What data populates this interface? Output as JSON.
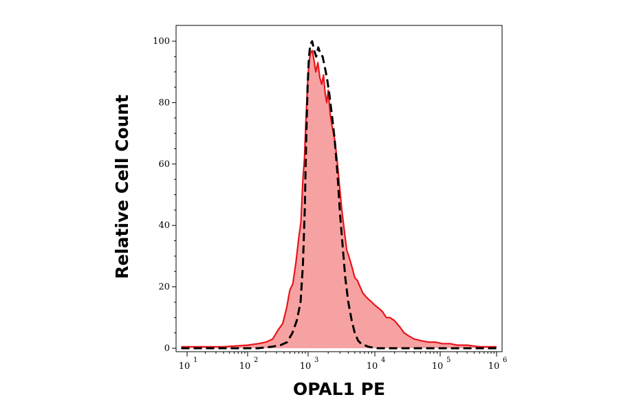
{
  "chart_data": {
    "type": "area",
    "xlabel": "OPAL1 PE",
    "ylabel": "Relative Cell Count",
    "x_scale": "log",
    "xlim": [
      10,
      1000000
    ],
    "ylim": [
      0,
      105
    ],
    "x_ticks": [
      {
        "value": 10,
        "base": "10",
        "exp": "1"
      },
      {
        "value": 100,
        "base": "10",
        "exp": "2"
      },
      {
        "value": 1000,
        "base": "10",
        "exp": "3"
      },
      {
        "value": 10000,
        "base": "10",
        "exp": "4"
      },
      {
        "value": 100000,
        "base": "10",
        "exp": "5"
      },
      {
        "value": 1000000,
        "base": "10",
        "exp": "6"
      }
    ],
    "y_ticks": [
      0,
      20,
      40,
      60,
      80,
      100
    ],
    "grid": false,
    "legend": "none",
    "series": [
      {
        "style": "red filled histogram",
        "color": "#e8141b",
        "fill": "#f7a2a2",
        "x": [
          8,
          40,
          100,
          150,
          200,
          260,
          320,
          380,
          440,
          500,
          560,
          630,
          700,
          760,
          820,
          870,
          920,
          980,
          1030,
          1080,
          1150,
          1220,
          1300,
          1400,
          1500,
          1600,
          1700,
          1800,
          1900,
          2000,
          2150,
          2300,
          2500,
          2700,
          2950,
          3200,
          3500,
          3800,
          4200,
          4600,
          5000,
          5500,
          6000,
          6600,
          7200,
          8000,
          9000,
          10000,
          11500,
          13000,
          15000,
          17000,
          20000,
          24000,
          28000,
          33000,
          40000,
          50000,
          65000,
          85000,
          110000,
          150000,
          200000,
          300000,
          500000,
          1000000
        ],
        "values": [
          0.5,
          0.5,
          1,
          1.5,
          2,
          3,
          6,
          8,
          13,
          19,
          21,
          28,
          36,
          41,
          55,
          62,
          74,
          86,
          93,
          96,
          97,
          94,
          90,
          93,
          88,
          86,
          89,
          83,
          80,
          84,
          76,
          72,
          68,
          62,
          53,
          45,
          38,
          32,
          29,
          26,
          23,
          22,
          20,
          18,
          17,
          16,
          15,
          14,
          13,
          12,
          10,
          10,
          9,
          7,
          5,
          4,
          3,
          2.5,
          2,
          2,
          1.5,
          1.5,
          1,
          1,
          0.5,
          0.5
        ]
      },
      {
        "style": "black dashed control",
        "color": "#000000",
        "x": [
          8,
          150,
          250,
          350,
          450,
          550,
          650,
          750,
          820,
          880,
          930,
          980,
          1030,
          1080,
          1150,
          1230,
          1320,
          1420,
          1520,
          1650,
          1800,
          1950,
          2100,
          2300,
          2500,
          2750,
          3000,
          3300,
          3600,
          4000,
          4500,
          5000,
          5600,
          6200,
          7000,
          8000,
          9000,
          10000,
          20000,
          50000,
          100000,
          1000000
        ],
        "values": [
          0,
          0,
          0.5,
          1,
          2,
          5,
          9,
          15,
          27,
          45,
          68,
          85,
          95,
          99,
          100,
          97,
          95,
          98,
          96,
          95,
          91,
          87,
          82,
          75,
          68,
          57,
          44,
          33,
          23,
          15,
          9,
          5,
          2.5,
          1.5,
          1,
          0.5,
          0.3,
          0,
          0,
          0,
          0,
          0
        ]
      }
    ]
  }
}
